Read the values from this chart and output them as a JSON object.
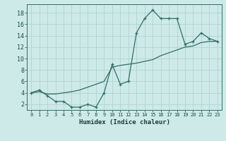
{
  "xlabel": "Humidex (Indice chaleur)",
  "ylabel": "",
  "bg_color": "#ceeae8",
  "grid_color": "#aed4d0",
  "line_color": "#2e6e65",
  "xlim": [
    -0.5,
    23.5
  ],
  "ylim": [
    1.0,
    19.5
  ],
  "xticks": [
    0,
    1,
    2,
    3,
    4,
    5,
    6,
    7,
    8,
    9,
    10,
    11,
    12,
    13,
    14,
    15,
    16,
    17,
    18,
    19,
    20,
    21,
    22,
    23
  ],
  "yticks": [
    2,
    4,
    6,
    8,
    10,
    12,
    14,
    16,
    18
  ],
  "line1_x": [
    0,
    1,
    2,
    3,
    4,
    5,
    6,
    7,
    8,
    9,
    10,
    11,
    12,
    13,
    14,
    15,
    16,
    17,
    18,
    19,
    20,
    21,
    22,
    23
  ],
  "line1_y": [
    4.0,
    4.5,
    3.5,
    2.5,
    2.5,
    1.5,
    1.5,
    2.0,
    1.5,
    4.0,
    9.0,
    5.5,
    6.0,
    14.5,
    17.0,
    18.5,
    17.0,
    17.0,
    17.0,
    12.5,
    13.0,
    14.5,
    13.5,
    13.0
  ],
  "line2_x": [
    0,
    1,
    2,
    3,
    4,
    5,
    6,
    7,
    8,
    9,
    10,
    11,
    12,
    13,
    14,
    15,
    16,
    17,
    18,
    19,
    20,
    21,
    22,
    23
  ],
  "line2_y": [
    4.0,
    4.2,
    3.8,
    3.8,
    4.0,
    4.2,
    4.5,
    5.0,
    5.5,
    6.0,
    8.5,
    8.8,
    9.0,
    9.2,
    9.5,
    9.8,
    10.5,
    11.0,
    11.5,
    12.0,
    12.2,
    12.8,
    13.0,
    13.0
  ]
}
